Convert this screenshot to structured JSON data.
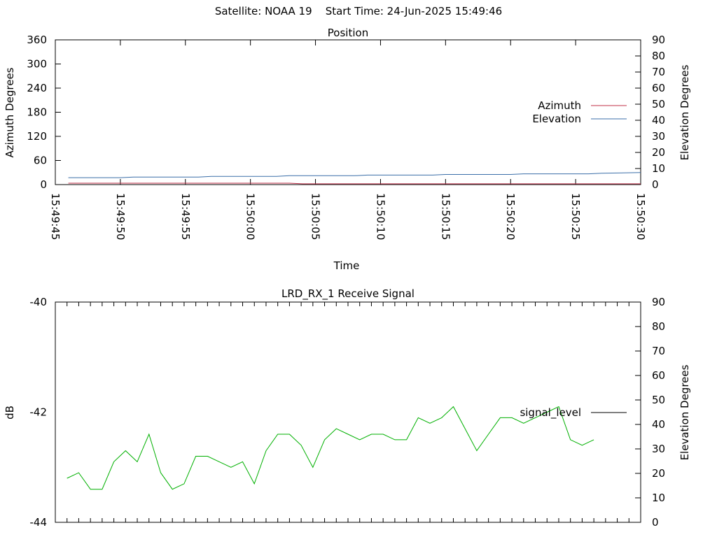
{
  "header": {
    "title": "Satellite: NOAA 19    Start Time: 24-Jun-2025 15:49:46"
  },
  "chart_data": [
    {
      "type": "line",
      "title": "Position",
      "xlabel": "Time",
      "ylabel_left": "Azimuth Degrees",
      "ylabel_right": "Elevation Degrees",
      "x_ticks": [
        "15:49:45",
        "15:49:50",
        "15:49:55",
        "15:50:00",
        "15:50:05",
        "15:50:10",
        "15:50:15",
        "15:50:20",
        "15:50:25",
        "15:50:30"
      ],
      "xlim_seconds_after_15_49_45": [
        0,
        45
      ],
      "ylim_left": [
        0,
        360
      ],
      "ylim_right": [
        0,
        90
      ],
      "y_ticks_left": [
        "0",
        "60",
        "120",
        "180",
        "240",
        "300",
        "360"
      ],
      "y_ticks_right": [
        "0",
        "10",
        "20",
        "30",
        "40",
        "50",
        "60",
        "70",
        "80",
        "90"
      ],
      "legend_position": "right",
      "series": [
        {
          "name": "Azimuth",
          "axis": "left",
          "color": "#c0304a",
          "x": [
            1,
            5,
            10,
            15,
            18,
            19,
            25,
            30,
            35,
            40,
            45
          ],
          "values": [
            3.5,
            3.5,
            3.5,
            3.5,
            3.5,
            2,
            2,
            2,
            2,
            2,
            2
          ]
        },
        {
          "name": "Elevation",
          "axis": "right",
          "color": "#3a6ea8",
          "x": [
            1,
            5,
            6,
            11,
            12,
            17,
            18,
            23,
            24,
            29,
            30,
            35,
            36,
            41,
            42,
            45
          ],
          "values": [
            4.3,
            4.3,
            4.7,
            4.7,
            5.1,
            5.1,
            5.5,
            5.5,
            5.9,
            5.9,
            6.3,
            6.3,
            6.7,
            6.7,
            7.1,
            7.5
          ]
        }
      ]
    },
    {
      "type": "line",
      "title": "LRD_RX_1 Receive Signal",
      "ylabel_left": "dB",
      "ylabel_right": "Elevation Degrees",
      "ylim_left": [
        -44,
        -40
      ],
      "ylim_right": [
        0,
        90
      ],
      "y_ticks_left": [
        "-44",
        "-42",
        "-40"
      ],
      "y_ticks_right": [
        "0",
        "10",
        "20",
        "30",
        "40",
        "50",
        "60",
        "70",
        "80",
        "90"
      ],
      "x_tick_count": 50,
      "legend_position": "right",
      "series": [
        {
          "name": "signal_level",
          "legend_color": "#000000",
          "color": "#00b000",
          "values": [
            -43.2,
            -43.1,
            -43.4,
            -43.4,
            -42.9,
            -42.7,
            -42.9,
            -42.4,
            -43.1,
            -43.4,
            -43.3,
            -42.8,
            -42.8,
            -42.9,
            -43.0,
            -42.9,
            -43.3,
            -42.7,
            -42.4,
            -42.4,
            -42.6,
            -43.0,
            -42.5,
            -42.3,
            -42.4,
            -42.5,
            -42.4,
            -42.4,
            -42.5,
            -42.5,
            -42.1,
            -42.2,
            -42.1,
            -41.9,
            -42.3,
            -42.7,
            -42.4,
            -42.1,
            -42.1,
            -42.2,
            -42.1,
            -42.0,
            -41.9,
            -42.5,
            -42.6,
            -42.5
          ]
        }
      ]
    }
  ]
}
